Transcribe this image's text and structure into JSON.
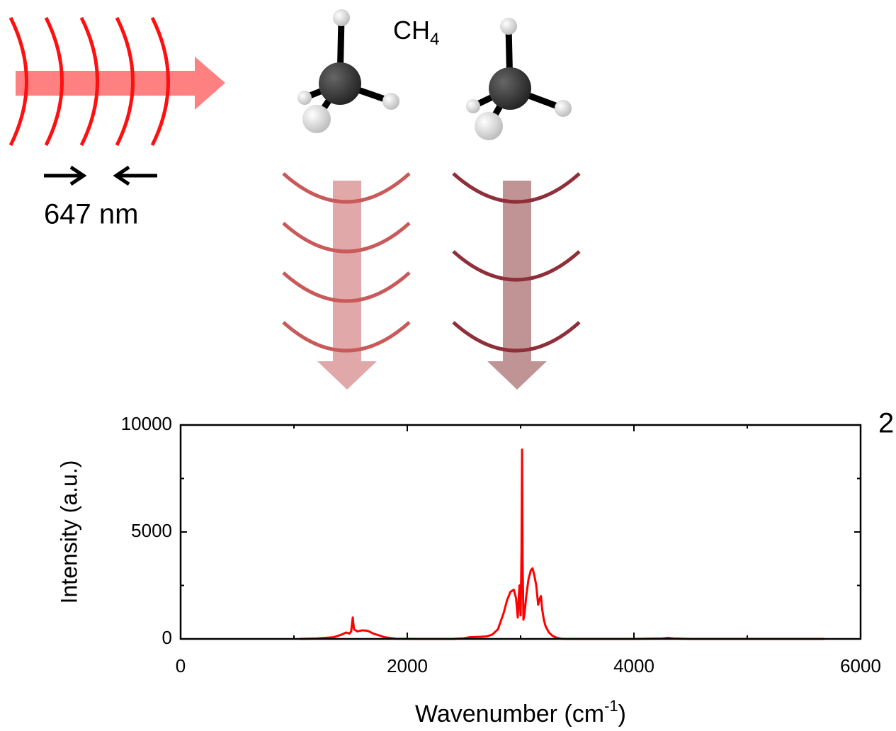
{
  "diagram": {
    "molecule_label": {
      "text": "CH",
      "sub": "4"
    },
    "wavelength_label": "647 nm",
    "panel_label": "2"
  },
  "chart_data": {
    "type": "line",
    "x_label": {
      "text": "Wavenumber (cm",
      "sup": "-1",
      "tail": ")"
    },
    "y_label": "Intensity (a.u.)",
    "xlim": [
      0,
      6000
    ],
    "ylim": [
      0,
      10000
    ],
    "xticks": [
      0,
      2000,
      4000,
      6000
    ],
    "yticks": [
      0,
      5000,
      10000
    ],
    "xminorticks": [
      1000,
      3000,
      5000
    ],
    "yminorticks": [
      2500,
      7500
    ],
    "series": [
      {
        "color": "#ff0000",
        "x": [
          1050,
          1200,
          1350,
          1420,
          1460,
          1490,
          1505,
          1519,
          1530,
          1560,
          1600,
          1650,
          1700,
          1800,
          1900,
          2100,
          2400,
          2500,
          2550,
          2650,
          2700,
          2750,
          2800,
          2850,
          2880,
          2910,
          2940,
          2960,
          2975,
          2990,
          3000,
          3008,
          3013,
          3018,
          3025,
          3035,
          3050,
          3070,
          3090,
          3105,
          3120,
          3138,
          3155,
          3170,
          3180,
          3190,
          3205,
          3220,
          3250,
          3280,
          3320,
          3360,
          3400,
          3600,
          4000,
          4250,
          4300,
          4350,
          4500,
          5000,
          5680
        ],
        "values": [
          0,
          20,
          80,
          200,
          300,
          250,
          350,
          1000,
          450,
          350,
          400,
          380,
          250,
          80,
          10,
          0,
          0,
          30,
          80,
          100,
          120,
          200,
          450,
          1200,
          1800,
          2200,
          2300,
          1900,
          1000,
          2500,
          1100,
          4000,
          8850,
          3500,
          900,
          1200,
          2000,
          2800,
          3200,
          3300,
          3000,
          2500,
          1600,
          1900,
          2000,
          1400,
          900,
          600,
          300,
          150,
          50,
          10,
          0,
          0,
          0,
          20,
          50,
          20,
          0,
          0,
          0
        ]
      }
    ]
  }
}
